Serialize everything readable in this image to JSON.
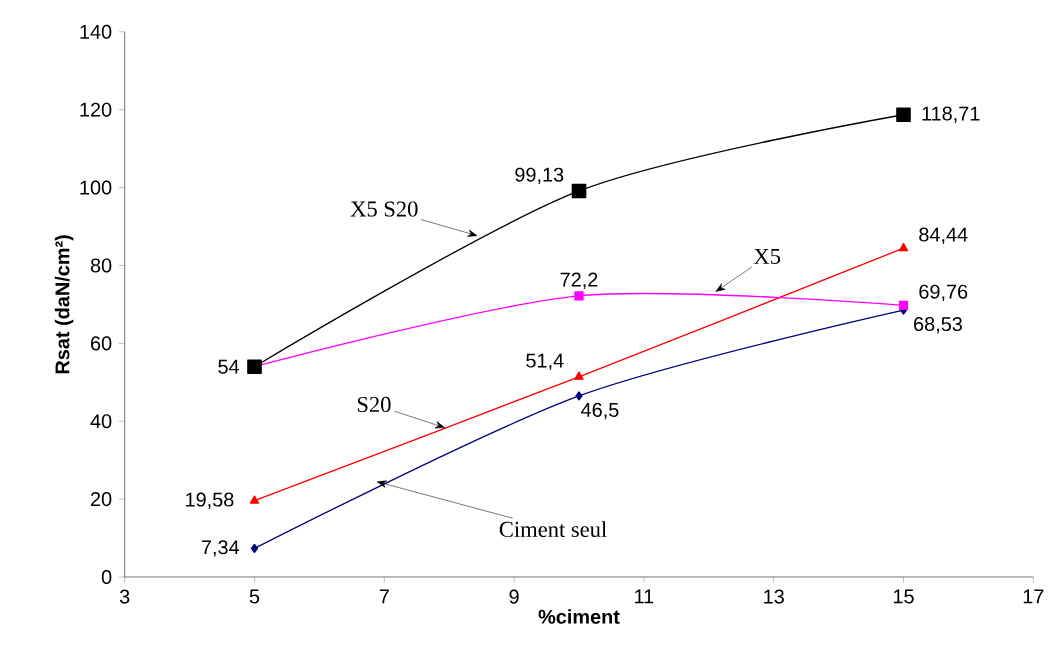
{
  "chart_data": {
    "type": "line",
    "xlabel": "%ciment",
    "ylabel": "Rsat (daN/cm²)",
    "x": [
      5,
      10,
      15
    ],
    "series": [
      {
        "color": "#000000",
        "marker": "square",
        "values": [
          54,
          99.13,
          118.71
        ],
        "value_labels": [
          "54",
          "99,13",
          "118,71"
        ]
      },
      {
        "color": "#ff00ff",
        "marker": "square",
        "values": [
          54,
          72.2,
          69.76
        ],
        "value_labels": [
          null,
          "72,2",
          "69,76"
        ]
      },
      {
        "color": "#ff0000",
        "marker": "triangle",
        "values": [
          19.58,
          51.4,
          84.44
        ],
        "value_labels": [
          "19,58",
          "51,4",
          "84,44"
        ]
      },
      {
        "color": "#000080",
        "marker": "diamond",
        "values": [
          7.34,
          46.5,
          68.53
        ],
        "value_labels": [
          "7,34",
          "46,5",
          "68,53"
        ]
      }
    ],
    "annotations": [
      {
        "text": "X5 S20",
        "x": 8.44,
        "y": 87.6
      },
      {
        "text": "X5",
        "x": 12.1,
        "y": 73.2
      },
      {
        "text": "S20",
        "x": 7.94,
        "y": 38.3
      },
      {
        "text": "Ciment seul",
        "x": 6.88,
        "y": 24.5
      }
    ],
    "xlim": [
      3,
      17
    ],
    "xticks": [
      3,
      5,
      7,
      9,
      11,
      13,
      15,
      17
    ],
    "ylim": [
      0,
      140
    ],
    "yticks": [
      0,
      20,
      40,
      60,
      80,
      100,
      120,
      140
    ],
    "grid": false
  }
}
